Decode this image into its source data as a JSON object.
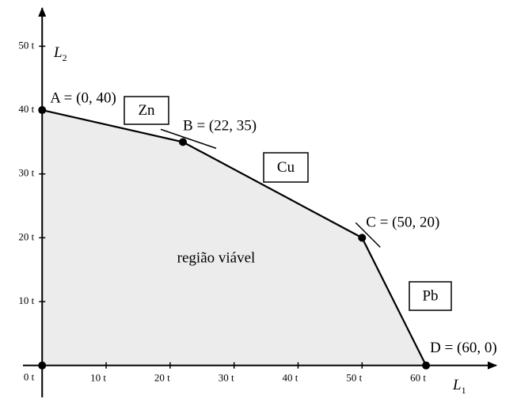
{
  "chart_data": {
    "type": "area",
    "x_label": "L",
    "x_label_sub": "1",
    "y_label": "L",
    "y_label_sub": "2",
    "x": [
      0,
      22,
      50,
      60
    ],
    "values": [
      40,
      35,
      20,
      0
    ],
    "point_labels": [
      "A = (0, 40)",
      "B = (22, 35)",
      "C = (50, 20)",
      "D = (60, 0)"
    ],
    "region_label": "região viável",
    "constraints": [
      "Zn",
      "Cu",
      "Pb"
    ],
    "color": "#000000",
    "fill": "#ececec",
    "xlim": [
      -3,
      71
    ],
    "ylim": [
      -5,
      56
    ],
    "xticks": [
      {
        "value": 10,
        "label": "10 t"
      },
      {
        "value": 20,
        "label": "20 t"
      },
      {
        "value": 30,
        "label": "30 t"
      },
      {
        "value": 40,
        "label": "40 t"
      },
      {
        "value": 50,
        "label": "50 t"
      },
      {
        "value": 60,
        "label": "60 t"
      }
    ],
    "yticks": [
      {
        "value": 0,
        "label": "0 t"
      },
      {
        "value": 10,
        "label": "10 t"
      },
      {
        "value": 20,
        "label": "20 t"
      },
      {
        "value": 30,
        "label": "30 t"
      },
      {
        "value": 40,
        "label": "40 t"
      },
      {
        "value": 50,
        "label": "50 t"
      }
    ]
  }
}
